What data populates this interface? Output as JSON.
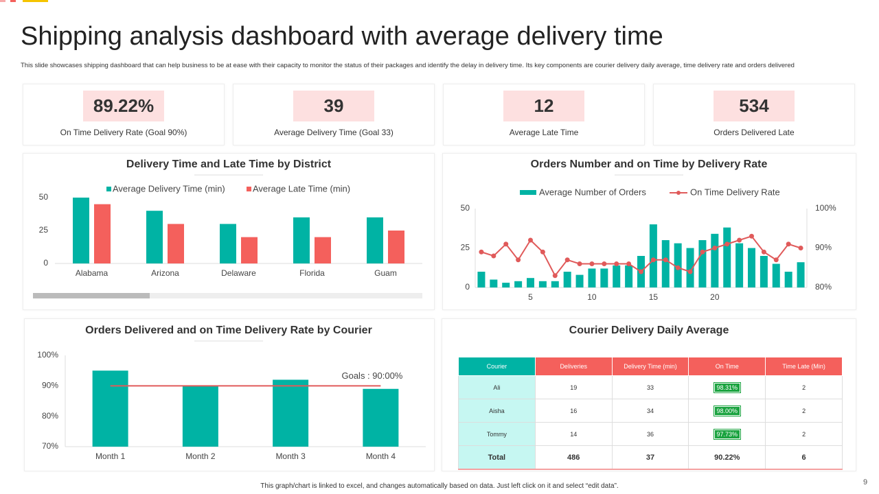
{
  "title": "Shipping analysis dashboard with average delivery time",
  "subtitle": "This slide showcases shipping dashboard that can help business to be at ease with their capacity to monitor the status of their packages and identify the delay in delivery time. Its key components are courier delivery daily average, time delivery rate and orders delivered",
  "kpis": [
    {
      "value": "89.22%",
      "label": "On Time Delivery Rate (Goal 90%)"
    },
    {
      "value": "39",
      "label": "Average Delivery Time (Goal 33)"
    },
    {
      "value": "12",
      "label": "Average Late Time"
    },
    {
      "value": "534",
      "label": "Orders Delivered Late"
    }
  ],
  "chart_data": [
    {
      "type": "grouped_bar",
      "title": "Delivery Time and Late Time by District",
      "categories": [
        "Alabama",
        "Arizona",
        "Delaware",
        "Florida",
        "Guam"
      ],
      "series": [
        {
          "name": "Average Delivery Time (min)",
          "color": "#00b3a4",
          "values": [
            50,
            40,
            30,
            35,
            35
          ]
        },
        {
          "name": "Average Late Time (min)",
          "color": "#f4605c",
          "values": [
            45,
            30,
            20,
            20,
            25
          ]
        }
      ],
      "ylim": [
        0,
        50
      ],
      "yticks": [
        0,
        25,
        50
      ],
      "grid": false
    },
    {
      "type": "combo",
      "title": "Orders Number and on Time by Delivery Rate",
      "x": [
        1,
        2,
        3,
        4,
        5,
        6,
        7,
        8,
        9,
        10,
        11,
        12,
        13,
        14,
        15,
        16,
        17,
        18,
        19,
        20,
        21,
        22,
        23,
        24,
        25,
        26,
        27
      ],
      "series": [
        {
          "name": "Average Number of Orders",
          "color": "#00b3a4",
          "values": [
            10,
            5,
            3,
            4,
            6,
            4,
            4,
            10,
            8,
            12,
            12,
            14,
            14,
            20,
            40,
            30,
            28,
            25,
            30,
            34,
            38,
            28,
            25,
            20,
            15,
            10,
            16
          ]
        },
        {
          "name": "On Time Delivery Rate",
          "color": "#e05a5a",
          "axis": "y2",
          "values": [
            89,
            88,
            91,
            87,
            92,
            89,
            83,
            87,
            86,
            86,
            86,
            86,
            86,
            84,
            87,
            87,
            85,
            84,
            89,
            90,
            91,
            92,
            93,
            89,
            87,
            91,
            90
          ]
        }
      ],
      "xlim": [
        0.5,
        27.5
      ],
      "xticks": [
        5,
        10,
        15,
        20
      ],
      "ylim": [
        0,
        50
      ],
      "yticks": [
        0,
        25,
        50
      ],
      "y2lim": [
        80,
        100
      ],
      "y2ticks": [
        {
          "value": 80,
          "label": "80%"
        },
        {
          "value": 90,
          "label": "90%"
        },
        {
          "value": 100,
          "label": "100%"
        }
      ],
      "grid": false
    },
    {
      "type": "bar",
      "title": "Orders Delivered and on Time Delivery Rate by Courier",
      "categories": [
        "Month 1",
        "Month 2",
        "Month 3",
        "Month 4"
      ],
      "values": [
        95,
        90,
        92,
        89
      ],
      "color": "#00b3a4",
      "ylim": [
        70,
        100
      ],
      "yticks": [
        {
          "value": 70,
          "label": "70%"
        },
        {
          "value": 80,
          "label": "80%"
        },
        {
          "value": 90,
          "label": "90%"
        },
        {
          "value": 100,
          "label": "100%"
        }
      ],
      "goal": {
        "value": 90,
        "label": "Goals : 90:00%",
        "color": "#e05a5a"
      },
      "grid": false
    }
  ],
  "table": {
    "title": "Courier Delivery Daily Average",
    "header": [
      "Courier",
      "Deliveries",
      "Delivery Time  (min)",
      "On Time",
      "Time Late (Min)"
    ],
    "rows": [
      [
        "Ali",
        "19",
        "33",
        "98.31%",
        "2"
      ],
      [
        "Aisha",
        "16",
        "34",
        "98.00%",
        "2"
      ],
      [
        "Tommy",
        "14",
        "36",
        "97.73%",
        "2"
      ],
      [
        "Total",
        "486",
        "37",
        "90.22%",
        "6"
      ]
    ]
  },
  "footer": "This graph/chart is linked to excel, and changes automatically based on data. Just left click on it and select “edit data”.",
  "page_number": "9"
}
